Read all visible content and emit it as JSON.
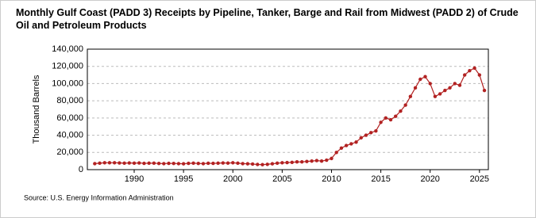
{
  "chart_data": {
    "type": "line",
    "title": "Monthly Gulf Coast (PADD 3) Receipts by Pipeline, Tanker, Barge and Rail from Midwest (PADD 2) of Crude Oil and Petroleum Products",
    "ylabel": "Thousand Barrels",
    "source": "Source: U.S. Energy Information Administration",
    "x": [
      1986,
      1986.5,
      1987,
      1987.5,
      1988,
      1988.5,
      1989,
      1989.5,
      1990,
      1990.5,
      1991,
      1991.5,
      1992,
      1992.5,
      1993,
      1993.5,
      1994,
      1994.5,
      1995,
      1995.5,
      1996,
      1996.5,
      1997,
      1997.5,
      1998,
      1998.5,
      1999,
      1999.5,
      2000,
      2000.5,
      2001,
      2001.5,
      2002,
      2002.5,
      2003,
      2003.5,
      2004,
      2004.5,
      2005,
      2005.5,
      2006,
      2006.5,
      2007,
      2007.5,
      2008,
      2008.5,
      2009,
      2009.5,
      2010,
      2010.5,
      2011,
      2011.5,
      2012,
      2012.5,
      2013,
      2013.5,
      2014,
      2014.5,
      2015,
      2015.5,
      2016,
      2016.5,
      2017,
      2017.5,
      2018,
      2018.5,
      2019,
      2019.5,
      2020,
      2020.5,
      2021,
      2021.5,
      2022,
      2022.5,
      2023,
      2023.5,
      2024,
      2024.5,
      2025,
      2025.5
    ],
    "series": [
      {
        "color": "#b22222",
        "values": [
          7000,
          7500,
          8000,
          8000,
          8000,
          7800,
          7500,
          7800,
          7500,
          7800,
          7300,
          7500,
          7500,
          7200,
          7000,
          7300,
          7200,
          7000,
          6800,
          7300,
          7500,
          7200,
          7000,
          7400,
          7300,
          7500,
          7800,
          7600,
          8000,
          7500,
          7000,
          6800,
          6500,
          6000,
          5800,
          6200,
          6800,
          7500,
          8000,
          8200,
          8500,
          9000,
          9000,
          9500,
          10000,
          10500,
          10000,
          11000,
          13000,
          20000,
          25000,
          28000,
          30000,
          32000,
          37000,
          40000,
          43000,
          45000,
          55000,
          60000,
          58000,
          62000,
          68000,
          75000,
          85000,
          95000,
          105000,
          108000,
          100000,
          85000,
          88000,
          92000,
          95000,
          100000,
          98000,
          110000,
          115000,
          118000,
          110000,
          92000
        ]
      }
    ],
    "xlim": [
      1985.25,
      2025.9
    ],
    "xticks": [
      1990,
      1995,
      2000,
      2005,
      2010,
      2015,
      2020,
      2025
    ],
    "ylim": [
      0,
      140000
    ],
    "yticks": [
      0,
      {
        "value": 20000,
        "label": "20,000"
      },
      {
        "value": 40000,
        "label": "40,000"
      },
      {
        "value": 60000,
        "label": "60,000"
      },
      {
        "value": 80000,
        "label": "80,000"
      },
      {
        "value": 100000,
        "label": "100,000"
      },
      {
        "value": 120000,
        "label": "120,000"
      },
      {
        "value": 140000,
        "label": "140,000"
      }
    ],
    "grid": true
  }
}
